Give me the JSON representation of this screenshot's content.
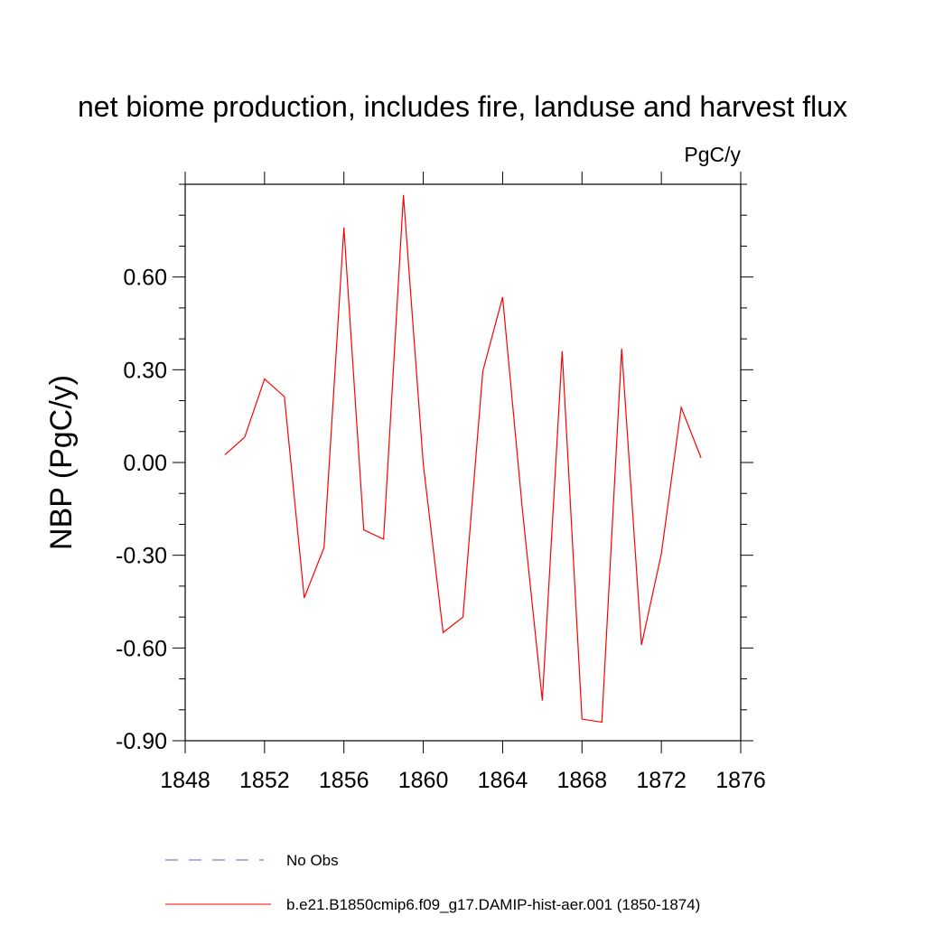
{
  "chart_data": {
    "type": "line",
    "title": "net biome production, includes fire, landuse and harvest flux",
    "units": "PgC/y",
    "ylabel": "NBP  (PgC/y)",
    "xlabel": "",
    "xlim": [
      1848,
      1876
    ],
    "ylim": [
      -0.9,
      0.9
    ],
    "xticks": [
      1848,
      1852,
      1856,
      1860,
      1864,
      1868,
      1872,
      1876
    ],
    "xtick_labels": [
      "1848",
      "1852",
      "1856",
      "1860",
      "1864",
      "1868",
      "1872",
      "1876"
    ],
    "yticks": [
      -0.9,
      -0.6,
      -0.3,
      0.0,
      0.3,
      0.6
    ],
    "ytick_labels": [
      "-0.90",
      "-0.60",
      "-0.30",
      "0.00",
      "0.30",
      "0.60"
    ],
    "grid": false,
    "legend_position": "bottom",
    "series": [
      {
        "name": "b.e21.B1850cmip6.f09_g17.DAMIP-hist-aer.001 (1850-1874)",
        "color": "#ff0000",
        "style": "solid",
        "x": [
          1850,
          1851,
          1852,
          1853,
          1854,
          1855,
          1856,
          1857,
          1858,
          1859,
          1860,
          1861,
          1862,
          1863,
          1864,
          1865,
          1866,
          1867,
          1868,
          1869,
          1870,
          1871,
          1872,
          1873,
          1874
        ],
        "values": [
          0.025,
          0.082,
          0.27,
          0.213,
          -0.438,
          -0.275,
          0.76,
          -0.218,
          -0.248,
          0.865,
          -0.005,
          -0.55,
          -0.5,
          0.295,
          0.535,
          -0.155,
          -0.77,
          0.36,
          -0.83,
          -0.84,
          0.368,
          -0.59,
          -0.295,
          0.178,
          0.015
        ]
      }
    ],
    "legend": [
      {
        "label": "No Obs",
        "color": "#6a5acd",
        "style": "dashed"
      },
      {
        "label": "b.e21.B1850cmip6.f09_g17.DAMIP-hist-aer.001 (1850-1874)",
        "color": "#ff0000",
        "style": "solid"
      }
    ]
  }
}
